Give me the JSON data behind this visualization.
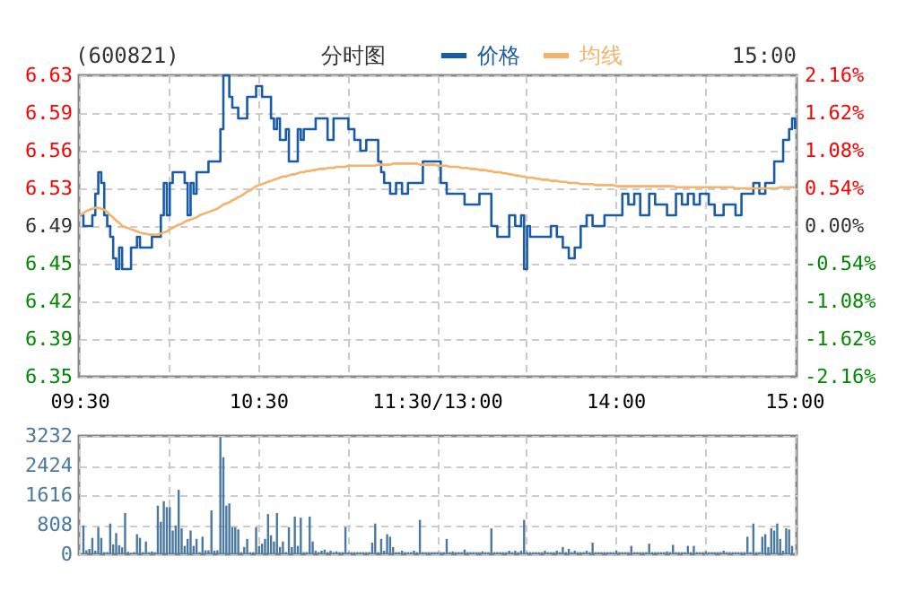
{
  "chart_data": [
    {
      "type": "line",
      "title": "(600821)",
      "annotations": [
        "分时图",
        "15:00"
      ],
      "legend": "top",
      "grid": true,
      "line_style": "solid",
      "marker": "none",
      "categories": [
        "09:30",
        null,
        null,
        null,
        null,
        null,
        null,
        null,
        null,
        null,
        null,
        null,
        null,
        null,
        null,
        null,
        null,
        null,
        null,
        null,
        null,
        null,
        null,
        null,
        null,
        null,
        null,
        null,
        null,
        null,
        null,
        null,
        null,
        null,
        null,
        null,
        null,
        null,
        null,
        null,
        null,
        null,
        null,
        null,
        null,
        null,
        null,
        null,
        null,
        null,
        null,
        null,
        null,
        null,
        null,
        null,
        null,
        null,
        null,
        null,
        "10:30",
        null,
        null,
        null,
        null,
        null,
        null,
        null,
        null,
        null,
        null,
        null,
        null,
        null,
        null,
        null,
        null,
        null,
        null,
        null,
        null,
        null,
        null,
        null,
        null,
        null,
        null,
        null,
        null,
        null,
        null,
        null,
        null,
        null,
        null,
        null,
        null,
        null,
        null,
        null,
        null,
        null,
        null,
        null,
        null,
        null,
        null,
        null,
        null,
        null,
        null,
        null,
        null,
        null,
        null,
        null,
        null,
        null,
        null,
        null,
        "11:30/13:00",
        null,
        null,
        null,
        null,
        null,
        null,
        null,
        null,
        null,
        null,
        null,
        null,
        null,
        null,
        null,
        null,
        null,
        null,
        null,
        null,
        null,
        null,
        null,
        null,
        null,
        null,
        null,
        null,
        null,
        null,
        null,
        null,
        null,
        null,
        null,
        null,
        null,
        null,
        null,
        null,
        null,
        null,
        null,
        null,
        null,
        null,
        null,
        null,
        null,
        null,
        null,
        null,
        null,
        null,
        null,
        null,
        null,
        null,
        null,
        "14:00",
        null,
        null,
        null,
        null,
        null,
        null,
        null,
        null,
        null,
        null,
        null,
        null,
        null,
        null,
        null,
        null,
        null,
        null,
        null,
        null,
        null,
        null,
        null,
        null,
        null,
        null,
        null,
        null,
        null,
        null,
        null,
        null,
        null,
        null,
        null,
        null,
        null,
        null,
        null,
        null,
        null,
        null,
        null,
        null,
        null,
        null,
        null,
        null,
        null,
        null,
        null,
        null,
        null,
        null,
        null,
        null,
        null,
        null,
        null,
        "15:00"
      ],
      "ylim": [
        6.35,
        6.63
      ],
      "yticks": [
        6.35,
        {
          "value": 6.385,
          "label": "6.39"
        },
        6.42,
        {
          "value": 6.455,
          "label": "6.45"
        },
        6.49,
        {
          "value": 6.525,
          "label": "6.53"
        },
        6.56,
        {
          "value": 6.595,
          "label": "6.59"
        },
        6.63
      ],
      "y2lim": [
        -2.16,
        2.16
      ],
      "y2ticks": [
        {
          "value": -2.16,
          "label": "-2.16%"
        },
        {
          "value": -1.62,
          "label": "-1.62%"
        },
        {
          "value": -1.08,
          "label": "-1.08%"
        },
        {
          "value": -0.54,
          "label": "-0.54%"
        },
        {
          "value": 0,
          "label": "0.00%"
        },
        {
          "value": 0.54,
          "label": "0.54%"
        },
        {
          "value": 1.08,
          "label": "1.08%"
        },
        {
          "value": 1.62,
          "label": "1.62%"
        },
        {
          "value": 2.16,
          "label": "2.16%"
        }
      ],
      "series": [
        {
          "name": "价格",
          "type": "step",
          "color": "#1a5ba6",
          "values": [
            6.5,
            6.49,
            6.49,
            6.49,
            6.5,
            6.52,
            6.54,
            6.53,
            6.5,
            6.49,
            6.48,
            6.46,
            6.45,
            6.47,
            6.45,
            6.45,
            6.45,
            6.47,
            6.47,
            6.48,
            6.47,
            6.47,
            6.47,
            6.47,
            6.48,
            6.48,
            6.48,
            6.5,
            6.53,
            6.5,
            6.53,
            6.54,
            6.54,
            6.54,
            6.54,
            6.53,
            6.5,
            6.53,
            6.52,
            6.54,
            6.54,
            6.54,
            6.54,
            6.55,
            6.55,
            6.55,
            6.55,
            6.58,
            6.63,
            6.63,
            6.61,
            6.6,
            6.6,
            6.59,
            6.59,
            6.59,
            6.61,
            6.61,
            6.61,
            6.62,
            6.62,
            6.61,
            6.61,
            6.61,
            6.59,
            6.58,
            6.59,
            6.57,
            6.57,
            6.58,
            6.55,
            6.55,
            6.55,
            6.58,
            6.57,
            6.58,
            6.58,
            6.58,
            6.58,
            6.59,
            6.59,
            6.59,
            6.59,
            6.57,
            6.57,
            6.59,
            6.59,
            6.59,
            6.59,
            6.59,
            6.58,
            6.58,
            6.57,
            6.57,
            6.56,
            6.56,
            6.57,
            6.57,
            6.57,
            6.57,
            6.55,
            6.54,
            6.53,
            6.53,
            6.52,
            6.52,
            6.53,
            6.53,
            6.52,
            6.52,
            6.53,
            6.53,
            6.53,
            6.53,
            6.53,
            6.55,
            6.55,
            6.55,
            6.55,
            6.55,
            6.55,
            6.53,
            6.53,
            6.52,
            6.52,
            6.52,
            6.52,
            6.52,
            6.52,
            6.51,
            6.51,
            6.51,
            6.51,
            6.51,
            6.52,
            6.52,
            6.52,
            6.52,
            6.49,
            6.49,
            6.48,
            6.48,
            6.48,
            6.48,
            6.5,
            6.5,
            6.49,
            6.49,
            6.5,
            6.45,
            6.49,
            6.48,
            6.48,
            6.48,
            6.48,
            6.48,
            6.48,
            6.48,
            6.49,
            6.49,
            6.48,
            6.48,
            6.47,
            6.47,
            6.46,
            6.46,
            6.47,
            6.47,
            6.49,
            6.49,
            6.5,
            6.5,
            6.49,
            6.49,
            6.49,
            6.49,
            6.5,
            6.5,
            6.5,
            6.5,
            6.5,
            6.5,
            6.52,
            6.52,
            6.51,
            6.51,
            6.52,
            6.52,
            6.5,
            6.5,
            6.5,
            6.52,
            6.52,
            6.51,
            6.51,
            6.51,
            6.51,
            6.5,
            6.5,
            6.5,
            6.52,
            6.52,
            6.51,
            6.51,
            6.52,
            6.52,
            6.51,
            6.51,
            6.52,
            6.52,
            6.52,
            6.51,
            6.51,
            6.5,
            6.5,
            6.5,
            6.51,
            6.51,
            6.51,
            6.51,
            6.5,
            6.5,
            6.52,
            6.52,
            6.52,
            6.52,
            6.53,
            6.53,
            6.52,
            6.52,
            6.53,
            6.53,
            6.53,
            6.55,
            6.55,
            6.55,
            6.57,
            6.57,
            6.58,
            6.59,
            6.58
          ]
        },
        {
          "name": "均线",
          "type": "line",
          "color": "#f5b26b",
          "values": [
            6.5,
            6.502,
            6.504,
            6.505,
            6.506,
            6.507,
            6.507,
            6.506,
            6.505,
            6.503,
            6.5,
            6.498,
            6.495,
            6.493,
            6.49,
            6.489,
            6.488,
            6.487,
            6.486,
            6.485,
            6.484,
            6.483,
            6.483,
            6.482,
            6.482,
            6.482,
            6.482,
            6.483,
            6.484,
            6.485,
            6.487,
            6.488,
            6.49,
            6.491,
            6.492,
            6.494,
            6.495,
            6.496,
            6.497,
            6.498,
            6.5,
            6.501,
            6.502,
            6.503,
            6.504,
            6.505,
            6.506,
            6.508,
            6.51,
            6.511,
            6.512,
            6.514,
            6.515,
            6.517,
            6.518,
            6.52,
            6.522,
            6.523,
            6.525,
            6.527,
            6.528,
            6.529,
            6.53,
            6.531,
            6.532,
            6.533,
            6.534,
            6.535,
            6.536,
            6.536,
            6.537,
            6.538,
            6.538,
            6.539,
            6.54,
            6.54,
            6.541,
            6.541,
            6.542,
            6.542,
            6.543,
            6.543,
            6.543,
            6.544,
            6.544,
            6.544,
            6.545,
            6.545,
            6.545,
            6.545,
            6.546,
            6.546,
            6.546,
            6.546,
            6.546,
            6.546,
            6.546,
            6.546,
            6.546,
            6.546,
            6.547,
            6.547,
            6.547,
            6.547,
            6.547,
            6.548,
            6.548,
            6.548,
            6.548,
            6.548,
            6.548,
            6.548,
            6.548,
            6.548,
            6.547,
            6.547,
            6.547,
            6.547,
            6.547,
            6.547,
            6.546,
            6.546,
            6.546,
            6.546,
            6.545,
            6.545,
            6.545,
            6.545,
            6.544,
            6.544,
            6.544,
            6.543,
            6.543,
            6.543,
            6.542,
            6.542,
            6.542,
            6.541,
            6.541,
            6.54,
            6.54,
            6.54,
            6.539,
            6.539,
            6.538,
            6.538,
            6.537,
            6.537,
            6.536,
            6.536,
            6.535,
            6.535,
            6.535,
            6.534,
            6.534,
            6.533,
            6.533,
            6.533,
            6.532,
            6.532,
            6.532,
            6.531,
            6.531,
            6.531,
            6.53,
            6.53,
            6.53,
            6.53,
            6.529,
            6.529,
            6.529,
            6.529,
            6.529,
            6.528,
            6.528,
            6.528,
            6.528,
            6.528,
            6.528,
            6.528,
            6.527,
            6.527,
            6.527,
            6.527,
            6.527,
            6.527,
            6.527,
            6.527,
            6.527,
            6.527,
            6.527,
            6.527,
            6.527,
            6.527,
            6.527,
            6.527,
            6.527,
            6.527,
            6.527,
            6.527,
            6.526,
            6.526,
            6.526,
            6.526,
            6.526,
            6.526,
            6.526,
            6.526,
            6.526,
            6.526,
            6.526,
            6.526,
            6.526,
            6.526,
            6.526,
            6.526,
            6.526,
            6.526,
            6.526,
            6.526,
            6.525,
            6.525,
            6.525,
            6.525,
            6.525,
            6.525,
            6.525,
            6.525,
            6.525,
            6.525,
            6.525,
            6.525,
            6.525,
            6.525,
            6.525,
            6.526,
            6.526,
            6.526,
            6.526,
            6.526,
            6.526
          ]
        }
      ]
    },
    {
      "type": "bar",
      "color": "#4a78a0",
      "grid": true,
      "categories": [
        null,
        null,
        null,
        null,
        null,
        null,
        null,
        null,
        null,
        null,
        null,
        null,
        null,
        null,
        null,
        null,
        null,
        null,
        null,
        null,
        null,
        null,
        null,
        null,
        null,
        null,
        null,
        null,
        null,
        null,
        null,
        null,
        null,
        null,
        null,
        null,
        null,
        null,
        null,
        null,
        null,
        null,
        null,
        null,
        null,
        null,
        null,
        null,
        null,
        null,
        null,
        null,
        null,
        null,
        null,
        null,
        null,
        null,
        null,
        null,
        null,
        null,
        null,
        null,
        null,
        null,
        null,
        null,
        null,
        null,
        null,
        null,
        null,
        null,
        null,
        null,
        null,
        null,
        null,
        null,
        null,
        null,
        null,
        null,
        null,
        null,
        null,
        null,
        null,
        null,
        null,
        null,
        null,
        null,
        null,
        null,
        null,
        null,
        null,
        null,
        null,
        null,
        null,
        null,
        null,
        null,
        null,
        null,
        null,
        null,
        null,
        null,
        null,
        null,
        null,
        null,
        null,
        null,
        null,
        null,
        null,
        null,
        null,
        null,
        null,
        null,
        null,
        null,
        null,
        null,
        null,
        null,
        null,
        null,
        null,
        null,
        null,
        null,
        null,
        null,
        null,
        null,
        null,
        null,
        null,
        null,
        null,
        null,
        null,
        null,
        null,
        null,
        null,
        null,
        null,
        null,
        null,
        null,
        null,
        null,
        null,
        null,
        null,
        null,
        null,
        null,
        null,
        null,
        null,
        null,
        null,
        null,
        null,
        null,
        null,
        null,
        null,
        null,
        null,
        null,
        null,
        null,
        null,
        null,
        null,
        null,
        null,
        null,
        null,
        null,
        null,
        null,
        null,
        null,
        null,
        null,
        null,
        null,
        null,
        null,
        null,
        null,
        null,
        null,
        null,
        null,
        null,
        null,
        null,
        null,
        null,
        null,
        null,
        null,
        null,
        null,
        null,
        null,
        null,
        null,
        null,
        null,
        null,
        null,
        null,
        null,
        null,
        null,
        null,
        null,
        null,
        null,
        null,
        null,
        null,
        null,
        null,
        null,
        null,
        null,
        null
      ],
      "ylim": [
        0,
        3232
      ],
      "yticks": [
        0,
        808,
        1616,
        2424,
        3232
      ],
      "values": [
        null,
        790,
        110,
        150,
        450,
        100,
        740,
        450,
        60,
        60,
        840,
        270,
        580,
        250,
        190,
        1130,
        70,
        40,
        60,
        550,
        450,
        60,
        350,
        60,
        80,
        60,
        1330,
        890,
        1450,
        1290,
        1290,
        650,
        790,
        1760,
        710,
        230,
        420,
        650,
        230,
        420,
        60,
        480,
        110,
        110,
        1200,
        100,
        110,
        3200,
        2650,
        1330,
        1390,
        740,
        740,
        680,
        60,
        200,
        420,
        60,
        60,
        740,
        230,
        290,
        420,
        1100,
        520,
        350,
        1130,
        200,
        350,
        60,
        740,
        200,
        1030,
        230,
        1000,
        60,
        60,
        1030,
        350,
        100,
        60,
        100,
        130,
        60,
        100,
        60,
        80,
        60,
        60,
        740,
        60,
        60,
        60,
        60,
        60,
        60,
        60,
        60,
        320,
        840,
        60,
        420,
        100,
        550,
        480,
        200,
        60,
        60,
        100,
        60,
        60,
        60,
        100,
        60,
        940,
        60,
        60,
        60,
        60,
        60,
        60,
        60,
        60,
        420,
        60,
        80,
        60,
        60,
        60,
        130,
        60,
        60,
        60,
        60,
        60,
        80,
        60,
        60,
        710,
        60,
        60,
        60,
        60,
        60,
        100,
        60,
        100,
        60,
        100,
        940,
        60,
        60,
        60,
        60,
        60,
        60,
        100,
        60,
        60,
        60,
        100,
        60,
        200,
        60,
        150,
        60,
        100,
        60,
        60,
        60,
        100,
        60,
        320,
        60,
        60,
        60,
        60,
        60,
        60,
        60,
        100,
        60,
        60,
        60,
        60,
        230,
        60,
        60,
        60,
        60,
        60,
        290,
        60,
        60,
        60,
        60,
        60,
        80,
        60,
        260,
        60,
        60,
        60,
        60,
        230,
        60,
        230,
        60,
        60,
        60,
        80,
        60,
        60,
        60,
        60,
        60,
        100,
        60,
        60,
        60,
        60,
        60,
        60,
        60,
        480,
        60,
        840,
        60,
        60,
        480,
        550,
        200,
        710,
        650,
        840,
        420,
        100,
        710,
        680,
        230,
        null
      ]
    }
  ]
}
